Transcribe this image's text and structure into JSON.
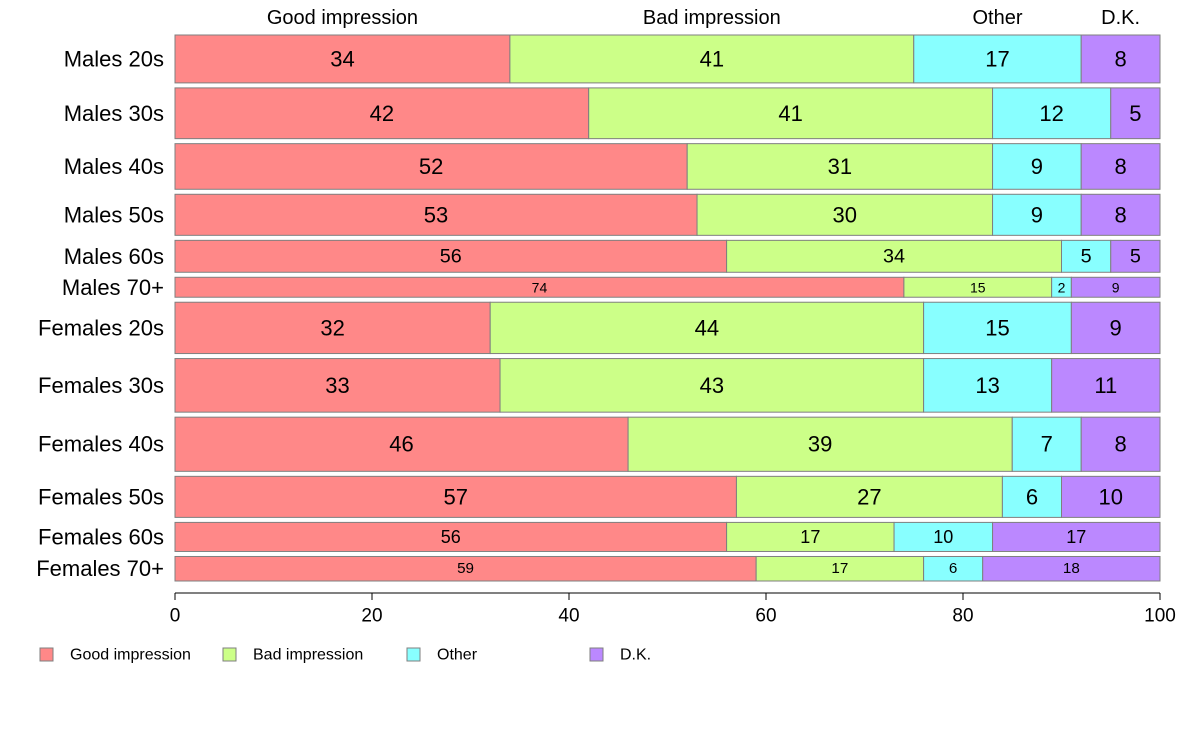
{
  "chart_data": {
    "type": "bar",
    "orientation": "horizontal",
    "stacked": true,
    "mosaic_heights": true,
    "categories": [
      "Males 20s",
      "Males 30s",
      "Males 40s",
      "Males 50s",
      "Males 60s",
      "Males 70+",
      "Females 20s",
      "Females 30s",
      "Females 40s",
      "Females 50s",
      "Females 60s",
      "Females 70+"
    ],
    "relative_sample_size": [
      8.4,
      8.9,
      8.0,
      7.2,
      5.6,
      3.5,
      9.0,
      9.4,
      9.5,
      7.2,
      5.1,
      4.3
    ],
    "series": [
      {
        "name": "Good impression",
        "color": "#ff8888",
        "values": [
          34,
          42,
          52,
          53,
          56,
          74,
          32,
          33,
          46,
          57,
          56,
          59
        ]
      },
      {
        "name": "Bad impression",
        "color": "#ccff88",
        "values": [
          41,
          41,
          31,
          30,
          34,
          15,
          44,
          43,
          39,
          27,
          17,
          17
        ]
      },
      {
        "name": "Other",
        "color": "#88ffff",
        "values": [
          17,
          12,
          9,
          9,
          5,
          2,
          15,
          13,
          7,
          6,
          10,
          6
        ]
      },
      {
        "name": "D.K.",
        "color": "#bb88ff",
        "values": [
          8,
          5,
          8,
          8,
          5,
          9,
          9,
          11,
          8,
          10,
          17,
          18
        ]
      }
    ],
    "xlim": [
      0,
      100
    ],
    "xticks": [
      0,
      20,
      40,
      60,
      80,
      100
    ],
    "column_headers": [
      "Good impression",
      "Bad impression",
      "Other",
      "D.K."
    ],
    "legend_position": "bottom-left",
    "grid": false
  }
}
